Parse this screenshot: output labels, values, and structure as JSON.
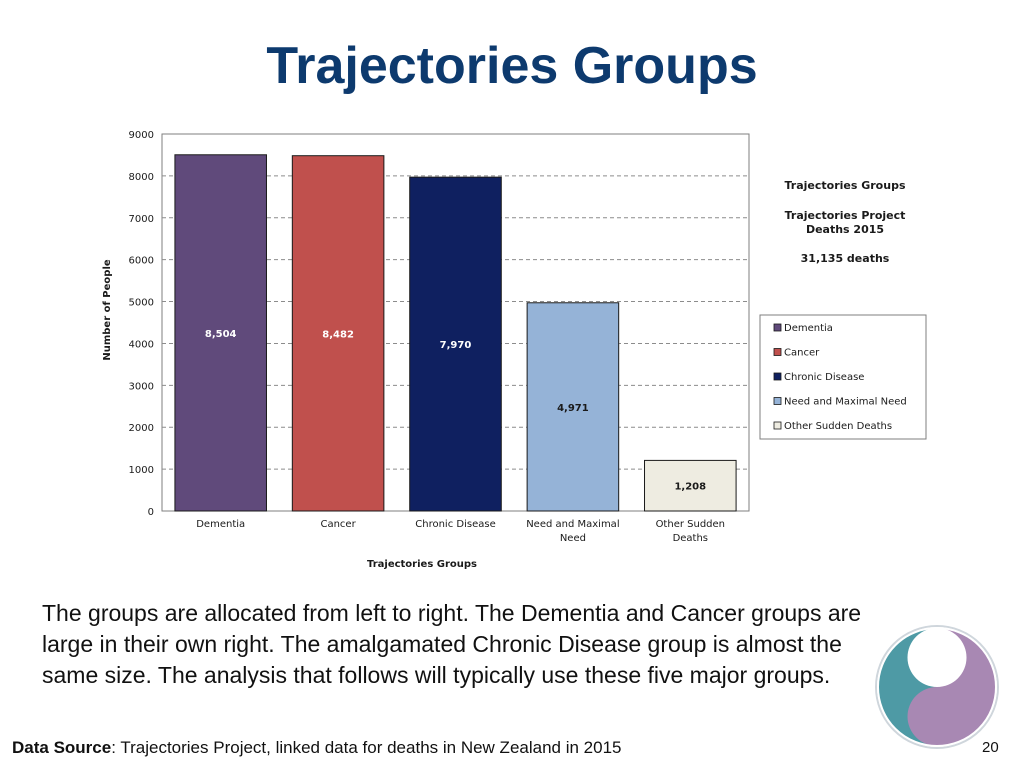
{
  "slide": {
    "title": "Trajectories Groups",
    "body": "The groups are allocated from left to right. The Dementia and Cancer groups are large in their own right. The amalgamated Chronic Disease group is almost the same size. The analysis that follows will typically use these five major groups.",
    "footer_label": "Data Source",
    "footer_text": ": Trajectories Project, linked data for deaths in New Zealand in 2015",
    "page_number": "20"
  },
  "chart_data": {
    "type": "bar",
    "title": "Trajectories Groups",
    "xlabel": "Trajectories Groups",
    "ylabel": "Number of People",
    "ylim": [
      0,
      9000
    ],
    "yticks": [
      0,
      1000,
      2000,
      3000,
      4000,
      5000,
      6000,
      7000,
      8000,
      9000
    ],
    "categories": [
      "Dementia",
      "Cancer",
      "Chronic Disease",
      "Need and Maximal Need",
      "Other Sudden Deaths"
    ],
    "values": [
      8504,
      8482,
      7970,
      4971,
      1208
    ],
    "data_labels": [
      "8,504",
      "8,482",
      "7,970",
      "4,971",
      "1,208"
    ],
    "colors": [
      "#604a7b",
      "#c0504d",
      "#0f2060",
      "#95b3d7",
      "#eeece1"
    ],
    "label_colors": [
      "#ffffff",
      "#ffffff",
      "#ffffff",
      "#1a1a1a",
      "#1a1a1a"
    ],
    "grid": "dashed horizontal",
    "legend_position": "right",
    "legend": [
      "Dementia",
      "Cancer",
      "Chronic Disease",
      "Need and Maximal Need",
      "Other Sudden Deaths"
    ],
    "annotation": {
      "heading": "Trajectories Groups",
      "subheading_line1": "Trajectories Project",
      "subheading_line2": "Deaths 2015",
      "total": "31,135 deaths"
    }
  },
  "logo_colors": {
    "teal": "#4e9aa5",
    "purple": "#a888b3"
  }
}
